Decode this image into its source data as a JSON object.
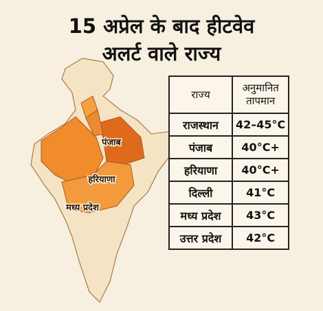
{
  "title": {
    "lines": [
      "15 अप्रेल के बाद हीटवेव",
      "अलर्ट वाले राज्य"
    ]
  },
  "map": {
    "labels": [
      "पंजाब",
      "हरियाणा",
      "मध्य प्रदेश"
    ]
  },
  "table": {
    "header": [
      "राज्य",
      "अनुमानित तापमान"
    ],
    "rows": [
      [
        "राजस्थान",
        "42–45°C"
      ],
      [
        "पंजाब",
        "40°C+"
      ],
      [
        "हरियाणा",
        "40°C+"
      ],
      [
        "दिल्ली",
        "41°C"
      ],
      [
        "मध्य प्रदेश",
        "43°C"
      ],
      [
        "उत्तर प्रदेश",
        "42°C"
      ]
    ]
  }
}
